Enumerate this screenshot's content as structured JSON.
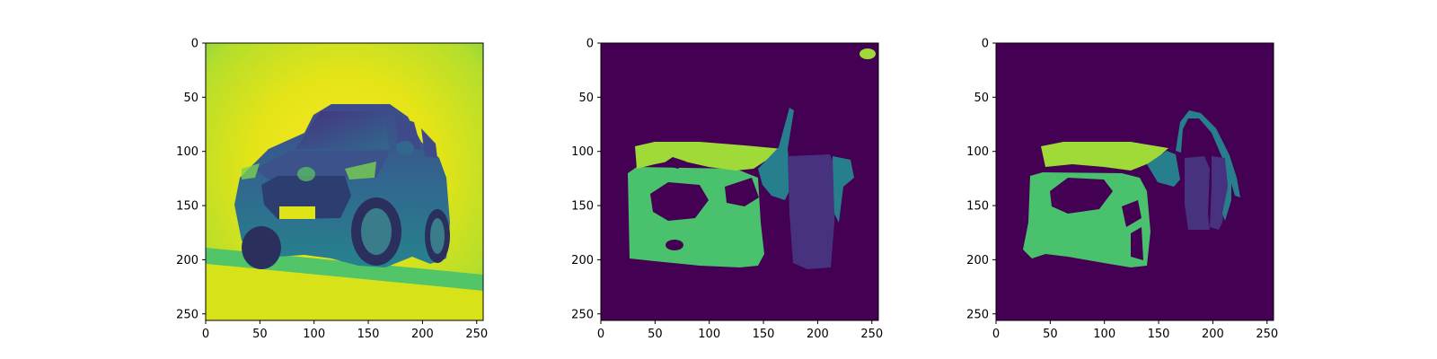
{
  "chart_data": [
    {
      "type": "heatmap",
      "content": "grayscale photo of an SUV rendered with viridis colormap",
      "xlim": [
        0,
        256
      ],
      "ylim": [
        256,
        0
      ],
      "xticks": [
        0,
        50,
        100,
        150,
        200,
        250
      ],
      "yticks": [
        0,
        50,
        100,
        150,
        200,
        250
      ],
      "colormap": "viridis"
    },
    {
      "type": "heatmap",
      "content": "segmentation mask of car parts",
      "xlim": [
        0,
        256
      ],
      "ylim": [
        256,
        0
      ],
      "xticks": [
        0,
        50,
        100,
        150,
        200,
        250
      ],
      "yticks": [
        0,
        50,
        100,
        150,
        200,
        250
      ],
      "colormap": "viridis"
    },
    {
      "type": "heatmap",
      "content": "segmentation mask of car parts",
      "xlim": [
        0,
        256
      ],
      "ylim": [
        256,
        0
      ],
      "xticks": [
        0,
        50,
        100,
        150,
        200,
        250
      ],
      "yticks": [
        0,
        50,
        100,
        150,
        200,
        250
      ],
      "colormap": "viridis"
    }
  ],
  "colors": {
    "background_mask": "#440154",
    "hood": "#a0da39",
    "body": "#4ac16d",
    "window": "#277f8e",
    "door": "#46327e",
    "photo_bright": "#e3e418",
    "photo_mid": "#35b779",
    "photo_dark": "#31688e"
  }
}
